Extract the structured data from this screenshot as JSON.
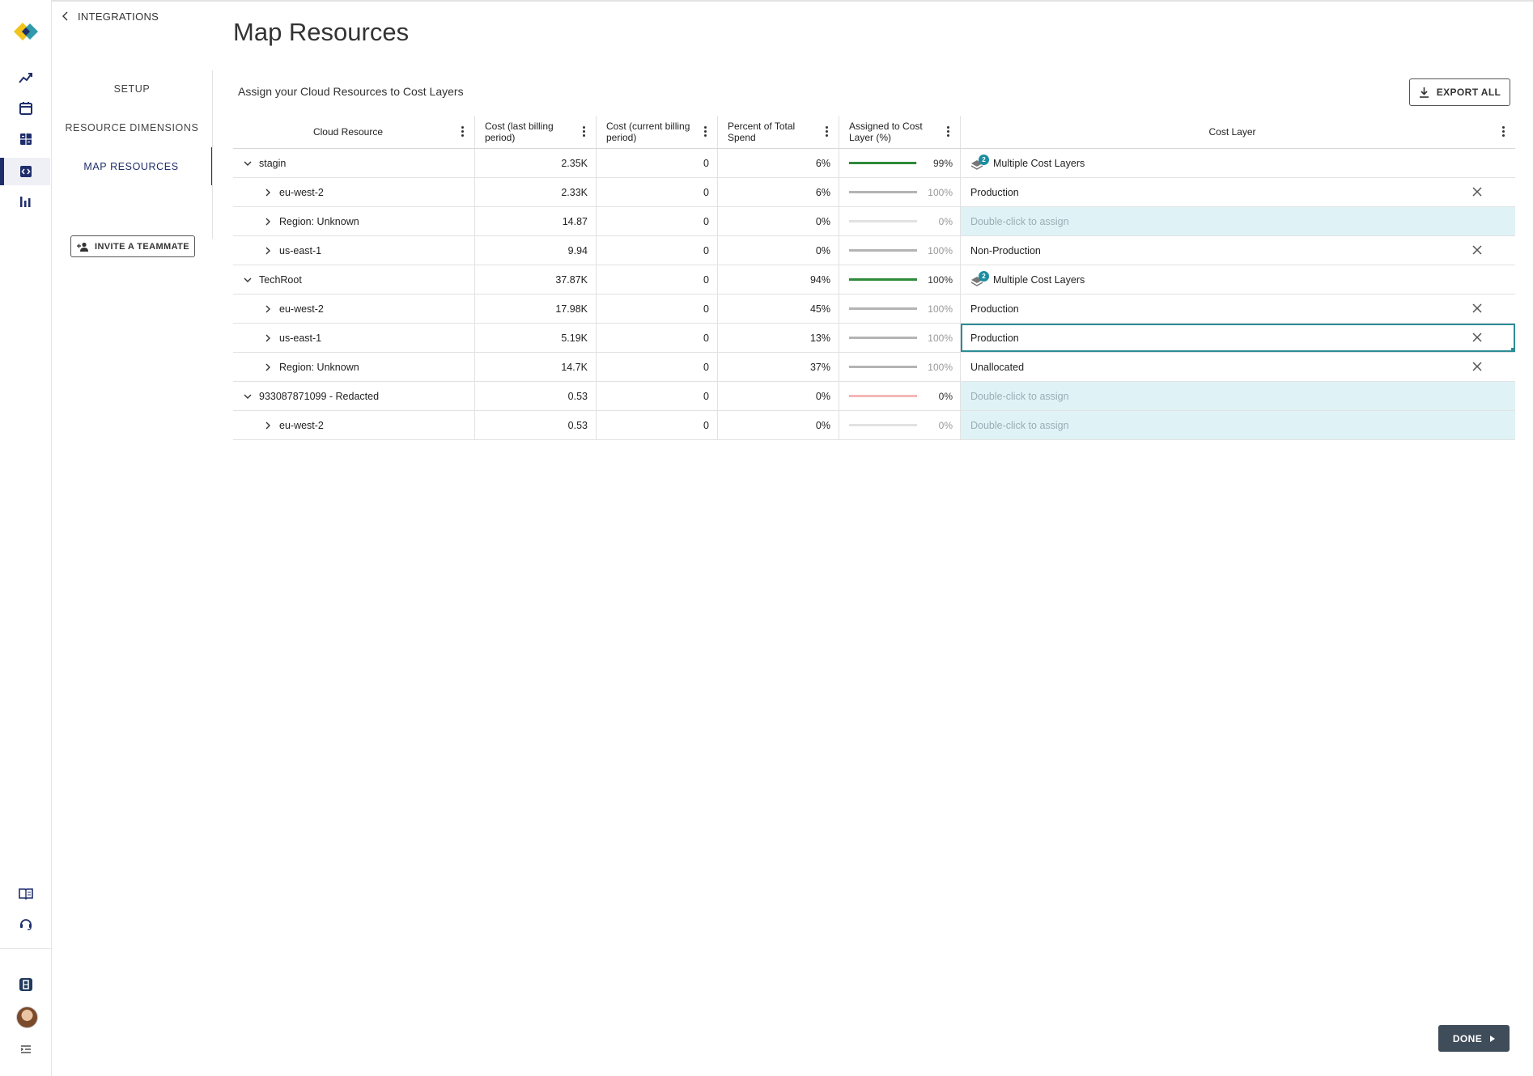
{
  "nav": {
    "back_label": "INTEGRATIONS",
    "items": [
      {
        "label": "SETUP",
        "active": false
      },
      {
        "label": "RESOURCE DIMENSIONS",
        "active": false
      },
      {
        "label": "MAP RESOURCES",
        "active": true
      }
    ],
    "invite_label": "INVITE A TEAMMATE"
  },
  "rail_icons": [
    "trend-icon",
    "calendar-icon",
    "calculator-icon",
    "integrations-icon",
    "bar-chart-icon",
    "docs-book-icon",
    "support-headset-icon",
    "org-icon",
    "avatar",
    "collapse-menu-icon"
  ],
  "page": {
    "title": "Map Resources",
    "subtitle": "Assign your Cloud Resources to Cost Layers",
    "export_label": "EXPORT ALL",
    "done_label": "DONE"
  },
  "table": {
    "columns": [
      "Cloud Resource",
      "Cost (last billing period)",
      "Cost (current billing period)",
      "Percent of Total Spend",
      "Assigned to Cost Layer (%)",
      "Cost Layer"
    ],
    "rows": [
      {
        "name": "stagin",
        "level": 0,
        "expanded": true,
        "cost_last": "2.35K",
        "cost_current": "0",
        "percent": "6%",
        "assigned": "99%",
        "assigned_value": 0.99,
        "bar_color": "#2e8b3a",
        "layer": "Multiple Cost Layers",
        "layer_kind": "multiple",
        "layer_count": "2"
      },
      {
        "name": "eu-west-2",
        "level": 1,
        "expanded": false,
        "cost_last": "2.33K",
        "cost_current": "0",
        "percent": "6%",
        "assigned": "100%",
        "assigned_value": 1.0,
        "bar_color": "#b4b4b4",
        "layer": "Production",
        "layer_kind": "single"
      },
      {
        "name": "Region: Unknown",
        "level": 1,
        "expanded": false,
        "cost_last": "14.87",
        "cost_current": "0",
        "percent": "0%",
        "assigned": "0%",
        "assigned_value": 0.0,
        "bar_color": "#b4b4b4",
        "layer": "Double-click to assign",
        "layer_kind": "assign"
      },
      {
        "name": "us-east-1",
        "level": 1,
        "expanded": false,
        "cost_last": "9.94",
        "cost_current": "0",
        "percent": "0%",
        "assigned": "100%",
        "assigned_value": 1.0,
        "bar_color": "#b4b4b4",
        "layer": "Non-Production",
        "layer_kind": "single"
      },
      {
        "name": "TechRoot",
        "level": 0,
        "expanded": true,
        "cost_last": "37.87K",
        "cost_current": "0",
        "percent": "94%",
        "assigned": "100%",
        "assigned_value": 1.0,
        "bar_color": "#2e8b3a",
        "layer": "Multiple Cost Layers",
        "layer_kind": "multiple",
        "layer_count": "2"
      },
      {
        "name": "eu-west-2",
        "level": 1,
        "expanded": false,
        "cost_last": "17.98K",
        "cost_current": "0",
        "percent": "45%",
        "assigned": "100%",
        "assigned_value": 1.0,
        "bar_color": "#b4b4b4",
        "layer": "Production",
        "layer_kind": "single"
      },
      {
        "name": "us-east-1",
        "level": 1,
        "expanded": false,
        "cost_last": "5.19K",
        "cost_current": "0",
        "percent": "13%",
        "assigned": "100%",
        "assigned_value": 1.0,
        "bar_color": "#b4b4b4",
        "layer": "Production",
        "layer_kind": "single",
        "selected": true
      },
      {
        "name": "Region: Unknown",
        "level": 1,
        "expanded": false,
        "cost_last": "14.7K",
        "cost_current": "0",
        "percent": "37%",
        "assigned": "100%",
        "assigned_value": 1.0,
        "bar_color": "#b4b4b4",
        "layer": "Unallocated",
        "layer_kind": "single"
      },
      {
        "name": "933087871099 - Redacted",
        "level": 0,
        "expanded": true,
        "cost_last": "0.53",
        "cost_current": "0",
        "percent": "0%",
        "assigned": "0%",
        "assigned_value": 0.0,
        "bar_color": "#f4b6b6",
        "track_color": "#f4b6b6",
        "layer": "Double-click to assign",
        "layer_kind": "assign"
      },
      {
        "name": "eu-west-2",
        "level": 1,
        "expanded": false,
        "cost_last": "0.53",
        "cost_current": "0",
        "percent": "0%",
        "assigned": "0%",
        "assigned_value": 0.0,
        "bar_color": "#b4b4b4",
        "layer": "Double-click to assign",
        "layer_kind": "assign"
      }
    ]
  },
  "colors": {
    "brand_navy": "#1f2d6b",
    "teal_accent": "#2d8c96",
    "assign_bg": "#dff3f6",
    "done_bg": "#3f4c59"
  }
}
